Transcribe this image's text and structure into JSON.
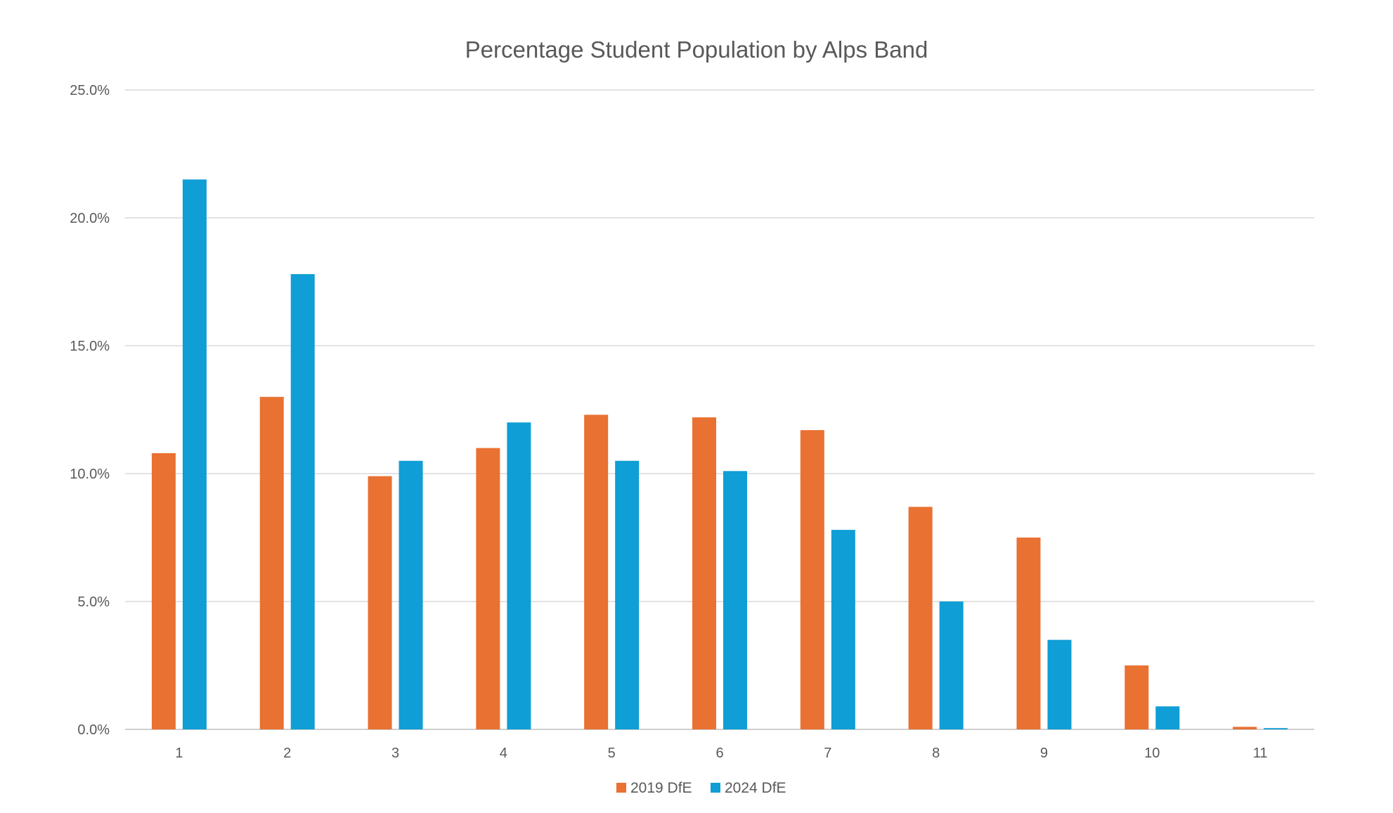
{
  "chart_data": {
    "type": "bar",
    "title": "Percentage Student Population by Alps Band",
    "xlabel": "",
    "ylabel": "",
    "categories": [
      "1",
      "2",
      "3",
      "4",
      "5",
      "6",
      "7",
      "8",
      "9",
      "10",
      "11"
    ],
    "series": [
      {
        "name": "2019 DfE",
        "color": "#E97132",
        "values": [
          10.8,
          13.0,
          9.9,
          11.0,
          12.3,
          12.2,
          11.7,
          8.7,
          7.5,
          2.5,
          0.1
        ]
      },
      {
        "name": "2024 DfE",
        "color": "#0F9ED5",
        "values": [
          21.5,
          17.8,
          10.5,
          12.0,
          10.5,
          10.1,
          7.8,
          5.0,
          3.5,
          0.9,
          0.05
        ]
      }
    ],
    "ylim": [
      0,
      25
    ],
    "yticks": [
      "0.0%",
      "5.0%",
      "10.0%",
      "15.0%",
      "20.0%",
      "25.0%"
    ],
    "grid": true,
    "legend_position": "bottom"
  }
}
